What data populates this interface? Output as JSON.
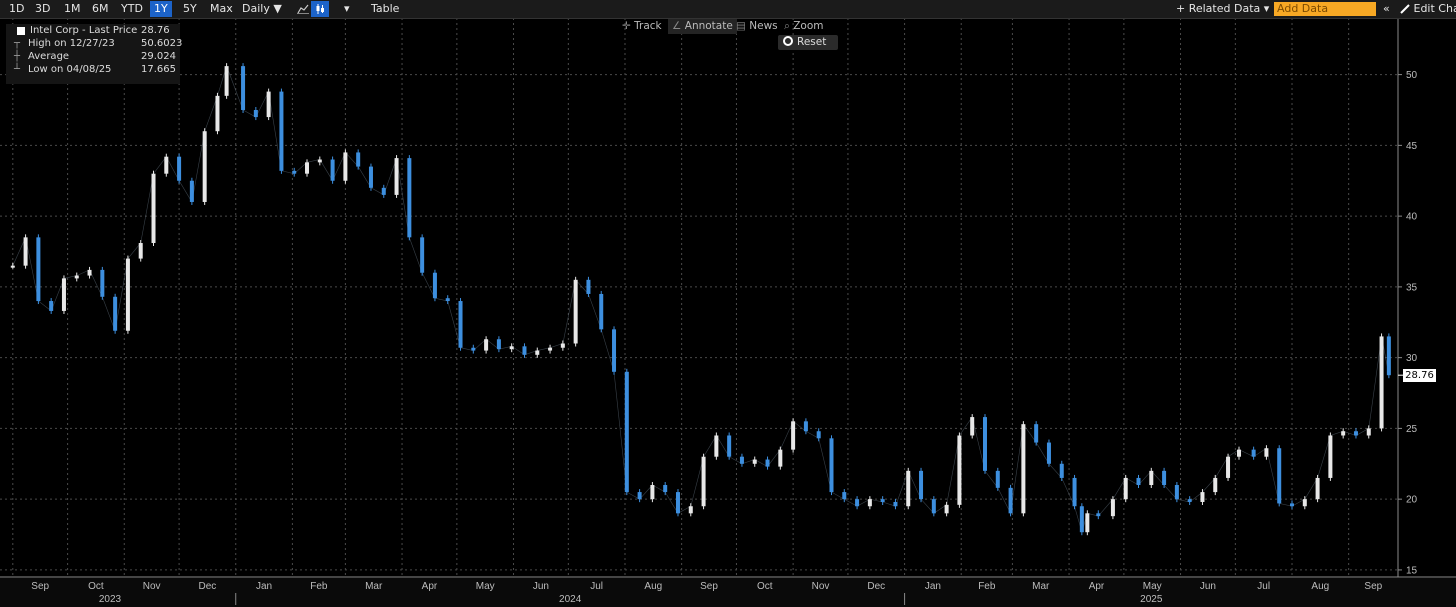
{
  "toolbar": {
    "ranges": [
      "1D",
      "3D",
      "1M",
      "6M",
      "YTD",
      "1Y",
      "5Y",
      "Max"
    ],
    "active_range": "1Y",
    "frequency": "Daily ▼",
    "table_label": "Table",
    "related_data": "+ Related Data ▾",
    "add_data_placeholder": "Add Data",
    "edit_chart": "Edit Cha"
  },
  "chart_tools": {
    "track": "Track",
    "annotate": "Annotate",
    "news": "News",
    "zoom": "Zoom",
    "reset": "Reset"
  },
  "legend": {
    "title": "Intel Corp - Last Price",
    "last_value": "28.76",
    "high_label": "High on 12/27/23",
    "high_value": "50.6023",
    "avg_label": "Average",
    "avg_value": "29.024",
    "low_label": "Low on 04/08/25",
    "low_value": "17.665"
  },
  "last_price_label": "28.76",
  "colors": {
    "up": "#e8e8e8",
    "down": "#3d8fdf",
    "grid": "#4a4a4a",
    "background": "#000000"
  },
  "chart_data": {
    "type": "line",
    "series": [
      {
        "name": "Intel Corp - Last Price",
        "x": [
          "2023-09-01",
          "2023-09-08",
          "2023-09-15",
          "2023-09-22",
          "2023-09-29",
          "2023-10-06",
          "2023-10-13",
          "2023-10-20",
          "2023-10-27",
          "2023-11-03",
          "2023-11-10",
          "2023-11-17",
          "2023-11-24",
          "2023-12-01",
          "2023-12-08",
          "2023-12-15",
          "2023-12-22",
          "2023-12-27",
          "2024-01-05",
          "2024-01-12",
          "2024-01-19",
          "2024-01-26",
          "2024-02-02",
          "2024-02-09",
          "2024-02-16",
          "2024-02-23",
          "2024-03-01",
          "2024-03-08",
          "2024-03-15",
          "2024-03-22",
          "2024-03-29",
          "2024-04-05",
          "2024-04-12",
          "2024-04-19",
          "2024-04-26",
          "2024-05-03",
          "2024-05-10",
          "2024-05-17",
          "2024-05-24",
          "2024-05-31",
          "2024-06-07",
          "2024-06-14",
          "2024-06-21",
          "2024-06-28",
          "2024-07-05",
          "2024-07-12",
          "2024-07-19",
          "2024-07-26",
          "2024-08-02",
          "2024-08-09",
          "2024-08-16",
          "2024-08-23",
          "2024-08-30",
          "2024-09-06",
          "2024-09-13",
          "2024-09-20",
          "2024-09-27",
          "2024-10-04",
          "2024-10-11",
          "2024-10-18",
          "2024-10-25",
          "2024-11-01",
          "2024-11-08",
          "2024-11-15",
          "2024-11-22",
          "2024-11-29",
          "2024-12-06",
          "2024-12-13",
          "2024-12-20",
          "2024-12-27",
          "2025-01-03",
          "2025-01-10",
          "2025-01-17",
          "2025-01-24",
          "2025-01-31",
          "2025-02-07",
          "2025-02-14",
          "2025-02-21",
          "2025-02-28",
          "2025-03-07",
          "2025-03-14",
          "2025-03-21",
          "2025-03-28",
          "2025-04-04",
          "2025-04-08",
          "2025-04-11",
          "2025-04-17",
          "2025-04-25",
          "2025-05-02",
          "2025-05-09",
          "2025-05-16",
          "2025-05-23",
          "2025-05-30",
          "2025-06-06",
          "2025-06-13",
          "2025-06-20",
          "2025-06-27",
          "2025-07-03",
          "2025-07-11",
          "2025-07-18",
          "2025-07-25",
          "2025-08-01",
          "2025-08-08",
          "2025-08-15",
          "2025-08-22",
          "2025-08-29",
          "2025-09-05",
          "2025-09-12",
          "2025-09-19",
          "2025-09-23"
        ],
        "y": [
          36.5,
          38.5,
          34.0,
          33.3,
          35.6,
          35.8,
          36.2,
          34.3,
          31.9,
          37.0,
          38.1,
          43.0,
          44.2,
          42.5,
          41.0,
          46.0,
          48.5,
          50.6,
          47.5,
          47.0,
          48.8,
          43.2,
          43.0,
          43.8,
          44.0,
          42.5,
          44.5,
          43.5,
          42.0,
          41.5,
          44.1,
          38.5,
          36.0,
          34.2,
          34.0,
          30.7,
          30.5,
          31.3,
          30.6,
          30.8,
          30.2,
          30.5,
          30.7,
          31.0,
          35.5,
          34.5,
          32.0,
          29.0,
          20.5,
          20.0,
          21.0,
          20.5,
          19.0,
          19.5,
          23.0,
          24.5,
          23.0,
          22.5,
          22.8,
          22.3,
          23.5,
          25.5,
          24.8,
          24.3,
          20.5,
          20.0,
          19.5,
          20.0,
          19.8,
          19.5,
          22.0,
          20.0,
          19.0,
          19.6,
          24.5,
          25.8,
          22.0,
          20.8,
          19.0,
          25.3,
          24.0,
          22.5,
          21.5,
          19.5,
          17.665,
          19.0,
          18.8,
          20.0,
          21.5,
          21.0,
          22.0,
          21.0,
          20.0,
          19.8,
          20.5,
          21.5,
          23.0,
          23.5,
          23.0,
          23.6,
          19.7,
          19.5,
          20.0,
          21.5,
          24.5,
          24.8,
          24.5,
          25.0,
          31.5,
          28.76
        ]
      }
    ],
    "xlabel": "",
    "ylabel": "",
    "month_ticks": [
      "Sep",
      "Oct",
      "Nov",
      "Dec",
      "Jan",
      "Feb",
      "Mar",
      "Apr",
      "May",
      "Jun",
      "Jul",
      "Aug",
      "Sep",
      "Oct",
      "Nov",
      "Dec",
      "Jan",
      "Feb",
      "Mar",
      "Apr",
      "May",
      "Jun",
      "Jul",
      "Aug",
      "Sep"
    ],
    "year_labels": [
      "2023",
      "2024",
      "2025"
    ],
    "y_ticks": [
      15,
      20,
      25,
      30,
      35,
      40,
      45,
      50
    ],
    "ylim": [
      14.5,
      54
    ],
    "xlim": [
      "2023-08-25",
      "2025-09-28"
    ],
    "y_axis_side": "right",
    "grid": true,
    "legend_position": "top-left"
  }
}
